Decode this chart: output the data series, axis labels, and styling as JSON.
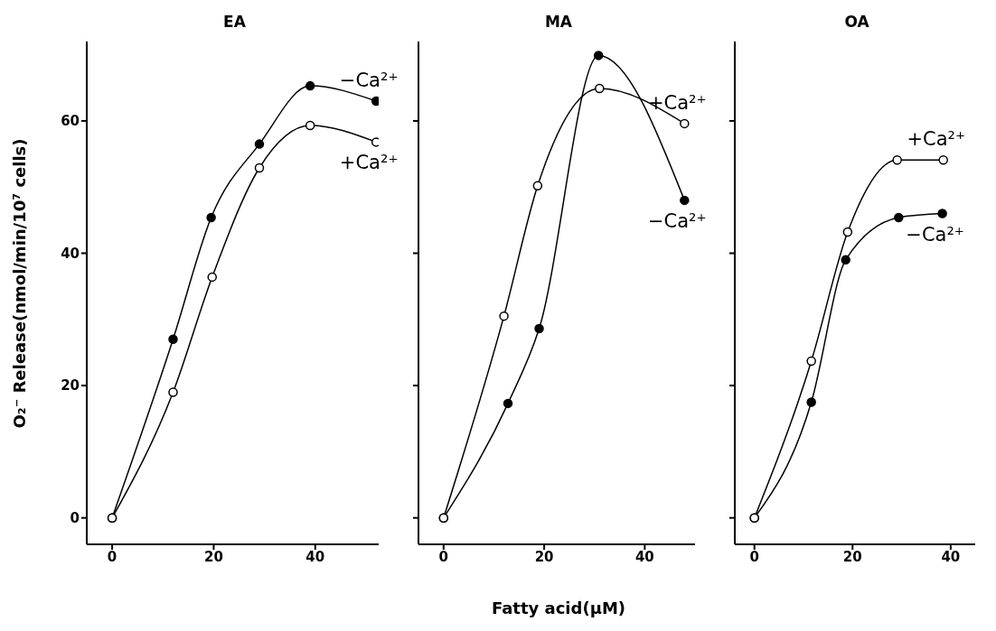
{
  "chart_data": [
    {
      "type": "line",
      "title": "EA",
      "ylabel": "O₂⁻ Release(nmol/min/10⁷ cells)",
      "xlim": [
        -5,
        52.5
      ],
      "xticks": [
        0,
        20,
        40
      ],
      "ylim": [
        -4,
        72
      ],
      "yticks": [
        0,
        20,
        40,
        60
      ],
      "grid": false,
      "legend": false,
      "line_style": "solid",
      "series": [
        {
          "name": "−Ca²⁺",
          "color": "#000000",
          "marker": "circle",
          "x": [
            0,
            12,
            19.5,
            29,
            39,
            52
          ],
          "values": [
            0,
            27,
            45.4,
            56.5,
            65.3,
            63
          ]
        },
        {
          "name": "+Ca²⁺",
          "color": "#000000",
          "marker": "open-circle",
          "x": [
            0,
            12,
            19.7,
            29,
            39,
            52
          ],
          "values": [
            0,
            19,
            36.4,
            52.9,
            59.3,
            56.8
          ]
        }
      ]
    },
    {
      "type": "line",
      "title": "MA",
      "xlabel": "Fatty acid(μM)",
      "xlim": [
        -5,
        50
      ],
      "xticks": [
        0,
        20,
        40
      ],
      "ylim": [
        -4,
        72
      ],
      "yticks": [
        0,
        20,
        40,
        60
      ],
      "tick_labels": "x",
      "grid": false,
      "legend": false,
      "line_style": "solid",
      "series": [
        {
          "name": "−Ca²⁺",
          "color": "#000000",
          "marker": "circle",
          "x": [
            0,
            12.8,
            19,
            30.8,
            47.9
          ],
          "values": [
            0,
            17.3,
            28.6,
            69.9,
            48
          ]
        },
        {
          "name": "+Ca²⁺",
          "color": "#000000",
          "marker": "open-circle",
          "x": [
            0,
            12,
            18.7,
            31,
            47.9
          ],
          "values": [
            0,
            30.5,
            50.2,
            64.9,
            59.6
          ]
        }
      ]
    },
    {
      "type": "line",
      "title": "OA",
      "xlim": [
        -4,
        45
      ],
      "xticks": [
        0,
        20,
        40
      ],
      "ylim": [
        -4,
        72
      ],
      "yticks": [
        0,
        20,
        40,
        60
      ],
      "tick_labels": "x",
      "grid": false,
      "legend": false,
      "line_style": "solid",
      "series": [
        {
          "name": "−Ca²⁺",
          "color": "#000000",
          "marker": "circle",
          "x": [
            0,
            11.6,
            18.6,
            29.4,
            38.3
          ],
          "values": [
            0,
            17.5,
            39,
            45.4,
            46
          ]
        },
        {
          "name": "+Ca²⁺",
          "color": "#000000",
          "marker": "open-circle",
          "x": [
            0,
            11.6,
            19,
            29.1,
            38.5
          ],
          "values": [
            0,
            23.7,
            43.2,
            54.1,
            54.1
          ]
        }
      ]
    }
  ]
}
